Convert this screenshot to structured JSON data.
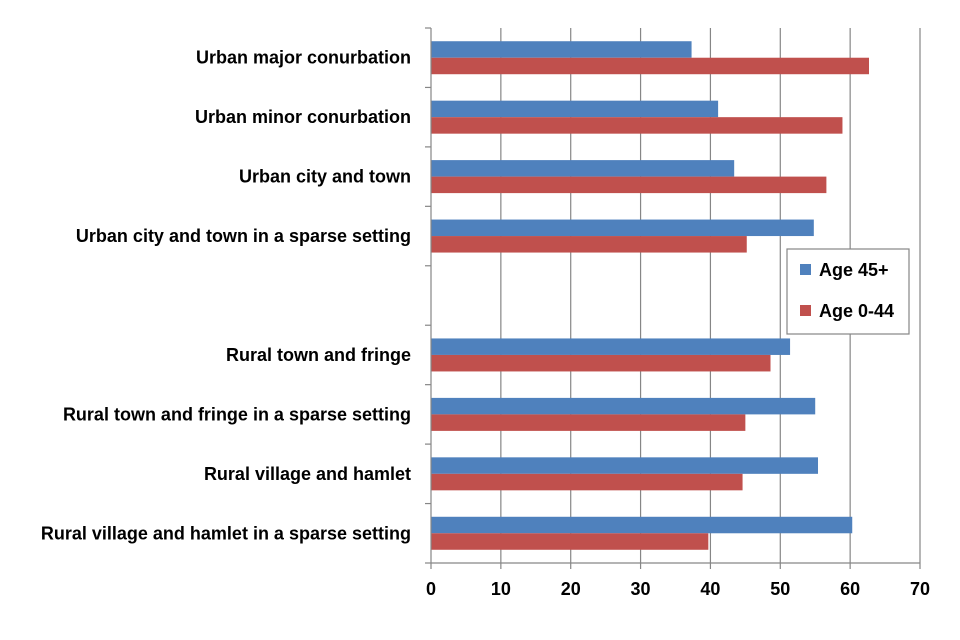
{
  "chart_data": {
    "type": "bar",
    "orientation": "horizontal",
    "categories": [
      "Urban major conurbation",
      "Urban minor conurbation",
      "Urban city and town",
      "Urban city and town in a sparse setting",
      "",
      "Rural town and fringe",
      "Rural town and fringe in a sparse setting",
      "Rural village and hamlet",
      "Rural village and hamlet in a sparse setting"
    ],
    "series": [
      {
        "name": "Age 45+",
        "color": "#4F81BD",
        "values": [
          37.3,
          41.1,
          43.4,
          54.8,
          null,
          51.4,
          55.0,
          55.4,
          60.3
        ]
      },
      {
        "name": "Age 0-44",
        "color": "#C0504D",
        "values": [
          62.7,
          58.9,
          56.6,
          45.2,
          null,
          48.6,
          45.0,
          44.6,
          39.7
        ]
      }
    ],
    "xlim": [
      0,
      70
    ],
    "xticks": [
      "0",
      "10",
      "20",
      "30",
      "40",
      "50",
      "60",
      "70"
    ],
    "grid": true,
    "legend_position": "right"
  }
}
